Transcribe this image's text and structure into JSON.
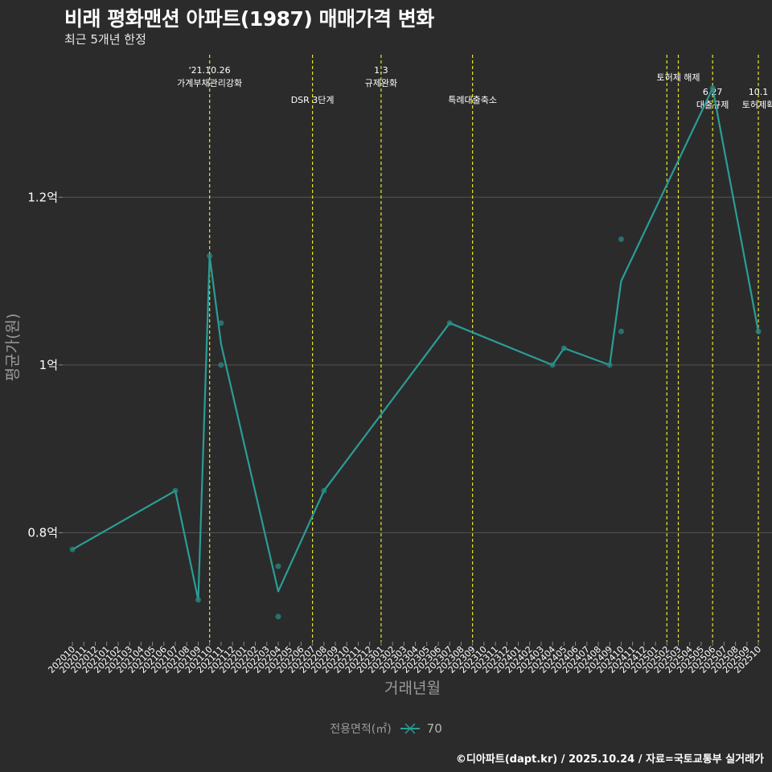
{
  "header": {
    "title": "비래 평화맨션 아파트(1987) 매매가격 변화",
    "subtitle": "최근 5개년 한정"
  },
  "footer": {
    "caption": "©디아파트(dapt.kr) / 2025.10.24 / 자료=국토교통부 실거래가"
  },
  "legend": {
    "title": "전용면적(㎡)",
    "items": [
      "70"
    ]
  },
  "colors": {
    "background": "#2b2b2b",
    "series": "#2a9d96",
    "event_line": "#e5e52b",
    "grid": "#555555"
  },
  "chart_data": {
    "type": "line",
    "xlabel": "거래년월",
    "ylabel": "평균가(원)",
    "x_ticks": [
      "202010",
      "202011",
      "202012",
      "202101",
      "202102",
      "202103",
      "202104",
      "202105",
      "202106",
      "202107",
      "202108",
      "202109",
      "202110",
      "202111",
      "202112",
      "202201",
      "202202",
      "202203",
      "202204",
      "202205",
      "202206",
      "202207",
      "202208",
      "202209",
      "202210",
      "202211",
      "202212",
      "202301",
      "202302",
      "202303",
      "202304",
      "202305",
      "202306",
      "202307",
      "202308",
      "202309",
      "202310",
      "202311",
      "202312",
      "202401",
      "202402",
      "202403",
      "202404",
      "202405",
      "202406",
      "202407",
      "202408",
      "202409",
      "202410",
      "202411",
      "202412",
      "202501",
      "202502",
      "202503",
      "202504",
      "202505",
      "202506",
      "202507",
      "202508",
      "202509",
      "202510"
    ],
    "y_ticks": [
      {
        "value": 0.8,
        "label": "0.8억"
      },
      {
        "value": 1.0,
        "label": "1억"
      },
      {
        "value": 1.2,
        "label": "1.2억"
      }
    ],
    "ylim": [
      0.67,
      1.37
    ],
    "grid": true,
    "legend_position": "bottom",
    "series": [
      {
        "name": "70",
        "line": [
          {
            "x": "202010",
            "y": 0.78
          },
          {
            "x": "202107",
            "y": 0.85
          },
          {
            "x": "202109",
            "y": 0.72
          },
          {
            "x": "202110",
            "y": 1.13
          },
          {
            "x": "202111",
            "y": 1.025
          },
          {
            "x": "202204",
            "y": 0.73
          },
          {
            "x": "202208",
            "y": 0.85
          },
          {
            "x": "202307",
            "y": 1.05
          },
          {
            "x": "202404",
            "y": 1.0
          },
          {
            "x": "202405",
            "y": 1.02
          },
          {
            "x": "202409",
            "y": 1.0
          },
          {
            "x": "202410",
            "y": 1.1
          },
          {
            "x": "202506",
            "y": 1.33
          },
          {
            "x": "202510",
            "y": 1.04
          }
        ],
        "points": [
          {
            "x": "202010",
            "y": 0.78
          },
          {
            "x": "202107",
            "y": 0.85
          },
          {
            "x": "202109",
            "y": 0.72
          },
          {
            "x": "202110",
            "y": 1.13
          },
          {
            "x": "202111",
            "y": 1.05
          },
          {
            "x": "202111",
            "y": 1.0
          },
          {
            "x": "202204",
            "y": 0.76
          },
          {
            "x": "202204",
            "y": 0.7
          },
          {
            "x": "202208",
            "y": 0.85
          },
          {
            "x": "202307",
            "y": 1.05
          },
          {
            "x": "202404",
            "y": 1.0
          },
          {
            "x": "202405",
            "y": 1.02
          },
          {
            "x": "202409",
            "y": 1.0
          },
          {
            "x": "202410",
            "y": 1.15
          },
          {
            "x": "202410",
            "y": 1.04
          },
          {
            "x": "202506",
            "y": 1.33
          },
          {
            "x": "202510",
            "y": 1.04
          }
        ]
      }
    ],
    "events": [
      {
        "x": "202110",
        "lines": [
          "'21.10.26",
          "가계부채관리강화"
        ],
        "row": 0
      },
      {
        "x": "202207",
        "lines": [
          "DSR 3단계"
        ],
        "row": 2
      },
      {
        "x": "202301",
        "lines": [
          "1.3",
          "규제완화"
        ],
        "row": 0
      },
      {
        "x": "202309",
        "lines": [
          "특례대출축소"
        ],
        "row": 2
      },
      {
        "x": "202502",
        "lines": [],
        "row": 1
      },
      {
        "x": "202503",
        "lines": [
          "토허제 해제"
        ],
        "row": 1
      },
      {
        "x": "202506",
        "lines": [
          "6.27",
          "대출규제"
        ],
        "row": 3
      },
      {
        "x": "202510",
        "lines": [
          "10.1",
          "토허제확"
        ],
        "row": 3
      }
    ]
  }
}
